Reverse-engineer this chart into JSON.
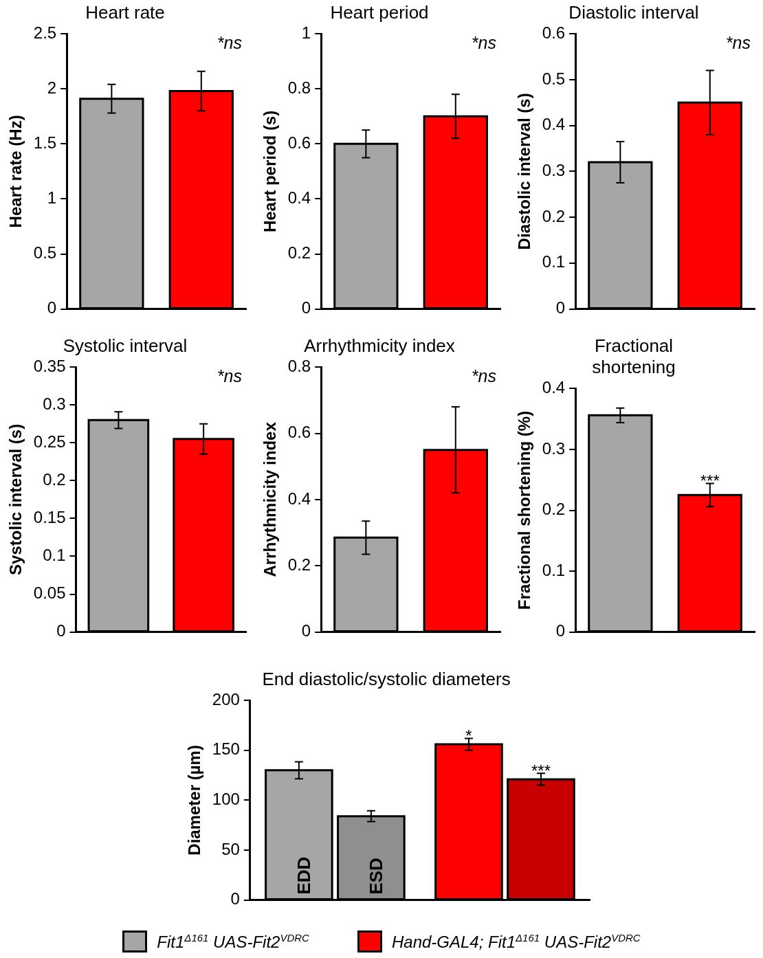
{
  "chart_data": [
    {
      "type": "bar",
      "title": "Heart rate",
      "ylabel": "Heart rate (Hz)",
      "categories": [
        null,
        null
      ],
      "values": [
        1.91,
        1.98
      ],
      "errors": [
        0.13,
        0.18
      ],
      "colors": [
        "#a6a6a6",
        "#ff0000"
      ],
      "ylim": [
        0,
        2.5
      ],
      "yticks": [
        0,
        0.5,
        1,
        1.5,
        2,
        2.5
      ],
      "annotations": [
        "*ns"
      ]
    },
    {
      "type": "bar",
      "title": "Heart period",
      "ylabel": "Heart period (s)",
      "categories": [
        null,
        null
      ],
      "values": [
        0.6,
        0.7
      ],
      "errors": [
        0.05,
        0.08
      ],
      "colors": [
        "#a6a6a6",
        "#ff0000"
      ],
      "ylim": [
        0,
        1
      ],
      "yticks": [
        0,
        0.2,
        0.4,
        0.6,
        0.8,
        1
      ],
      "annotations": [
        "*ns"
      ]
    },
    {
      "type": "bar",
      "title": "Diastolic interval",
      "ylabel": "Diastolic interval (s)",
      "categories": [
        null,
        null
      ],
      "values": [
        0.32,
        0.45
      ],
      "errors": [
        0.045,
        0.07
      ],
      "colors": [
        "#a6a6a6",
        "#ff0000"
      ],
      "ylim": [
        0,
        0.6
      ],
      "yticks": [
        0,
        0.1,
        0.2,
        0.3,
        0.4,
        0.5,
        0.6
      ],
      "annotations": [
        "*ns"
      ]
    },
    {
      "type": "bar",
      "title": "Systolic interval",
      "ylabel": "Systolic interval (s)",
      "categories": [
        null,
        null
      ],
      "values": [
        0.28,
        0.255
      ],
      "errors": [
        0.011,
        0.02
      ],
      "colors": [
        "#a6a6a6",
        "#ff0000"
      ],
      "ylim": [
        0,
        0.35
      ],
      "yticks": [
        0,
        0.05,
        0.1,
        0.15,
        0.2,
        0.25,
        0.3,
        0.35
      ],
      "annotations": [
        "*ns"
      ]
    },
    {
      "type": "bar",
      "title": "Arrhythmicity index",
      "ylabel": "Arrhythmicity index",
      "categories": [
        null,
        null
      ],
      "values": [
        0.285,
        0.55
      ],
      "errors": [
        0.05,
        0.13
      ],
      "colors": [
        "#a6a6a6",
        "#ff0000"
      ],
      "ylim": [
        0,
        0.8
      ],
      "yticks": [
        0,
        0.2,
        0.4,
        0.6,
        0.8
      ],
      "annotations": [
        "*ns"
      ]
    },
    {
      "type": "bar",
      "title": "Fractional shortening",
      "ylabel": "Fractional shortening (%)",
      "categories": [
        null,
        null
      ],
      "values": [
        0.356,
        0.225
      ],
      "errors": [
        0.012,
        0.019
      ],
      "colors": [
        "#a6a6a6",
        "#ff0000"
      ],
      "ylim": [
        0,
        0.4
      ],
      "yticks": [
        0,
        0.1,
        0.2,
        0.3,
        0.4
      ],
      "annotations": [
        "***"
      ]
    },
    {
      "type": "bar",
      "title": "End diastolic/systolic diameters",
      "ylabel": "Diameter (µm)",
      "categories": [
        "Fit1$^{Δ161}$ UAS-Fit2$^{VDRC}$",
        "Hand-GAL4; Fit1$^{Δ161}$ UAS-Fit2$^{VDRC}$"
      ],
      "series": [
        {
          "name": "EDD",
          "colors": [
            "#a6a6a6",
            "#ff0000"
          ],
          "values": [
            130,
            156
          ],
          "errors": [
            8.5,
            6
          ]
        },
        {
          "name": "ESD",
          "colors": [
            "#8f8f8f",
            "#c80000"
          ],
          "values": [
            84,
            121
          ],
          "errors": [
            5.5,
            6
          ]
        }
      ],
      "ylim": [
        0,
        200
      ],
      "yticks": [
        0,
        50,
        100,
        150,
        200
      ],
      "legend": "bottom",
      "annotations": [
        "*",
        "***"
      ]
    }
  ]
}
